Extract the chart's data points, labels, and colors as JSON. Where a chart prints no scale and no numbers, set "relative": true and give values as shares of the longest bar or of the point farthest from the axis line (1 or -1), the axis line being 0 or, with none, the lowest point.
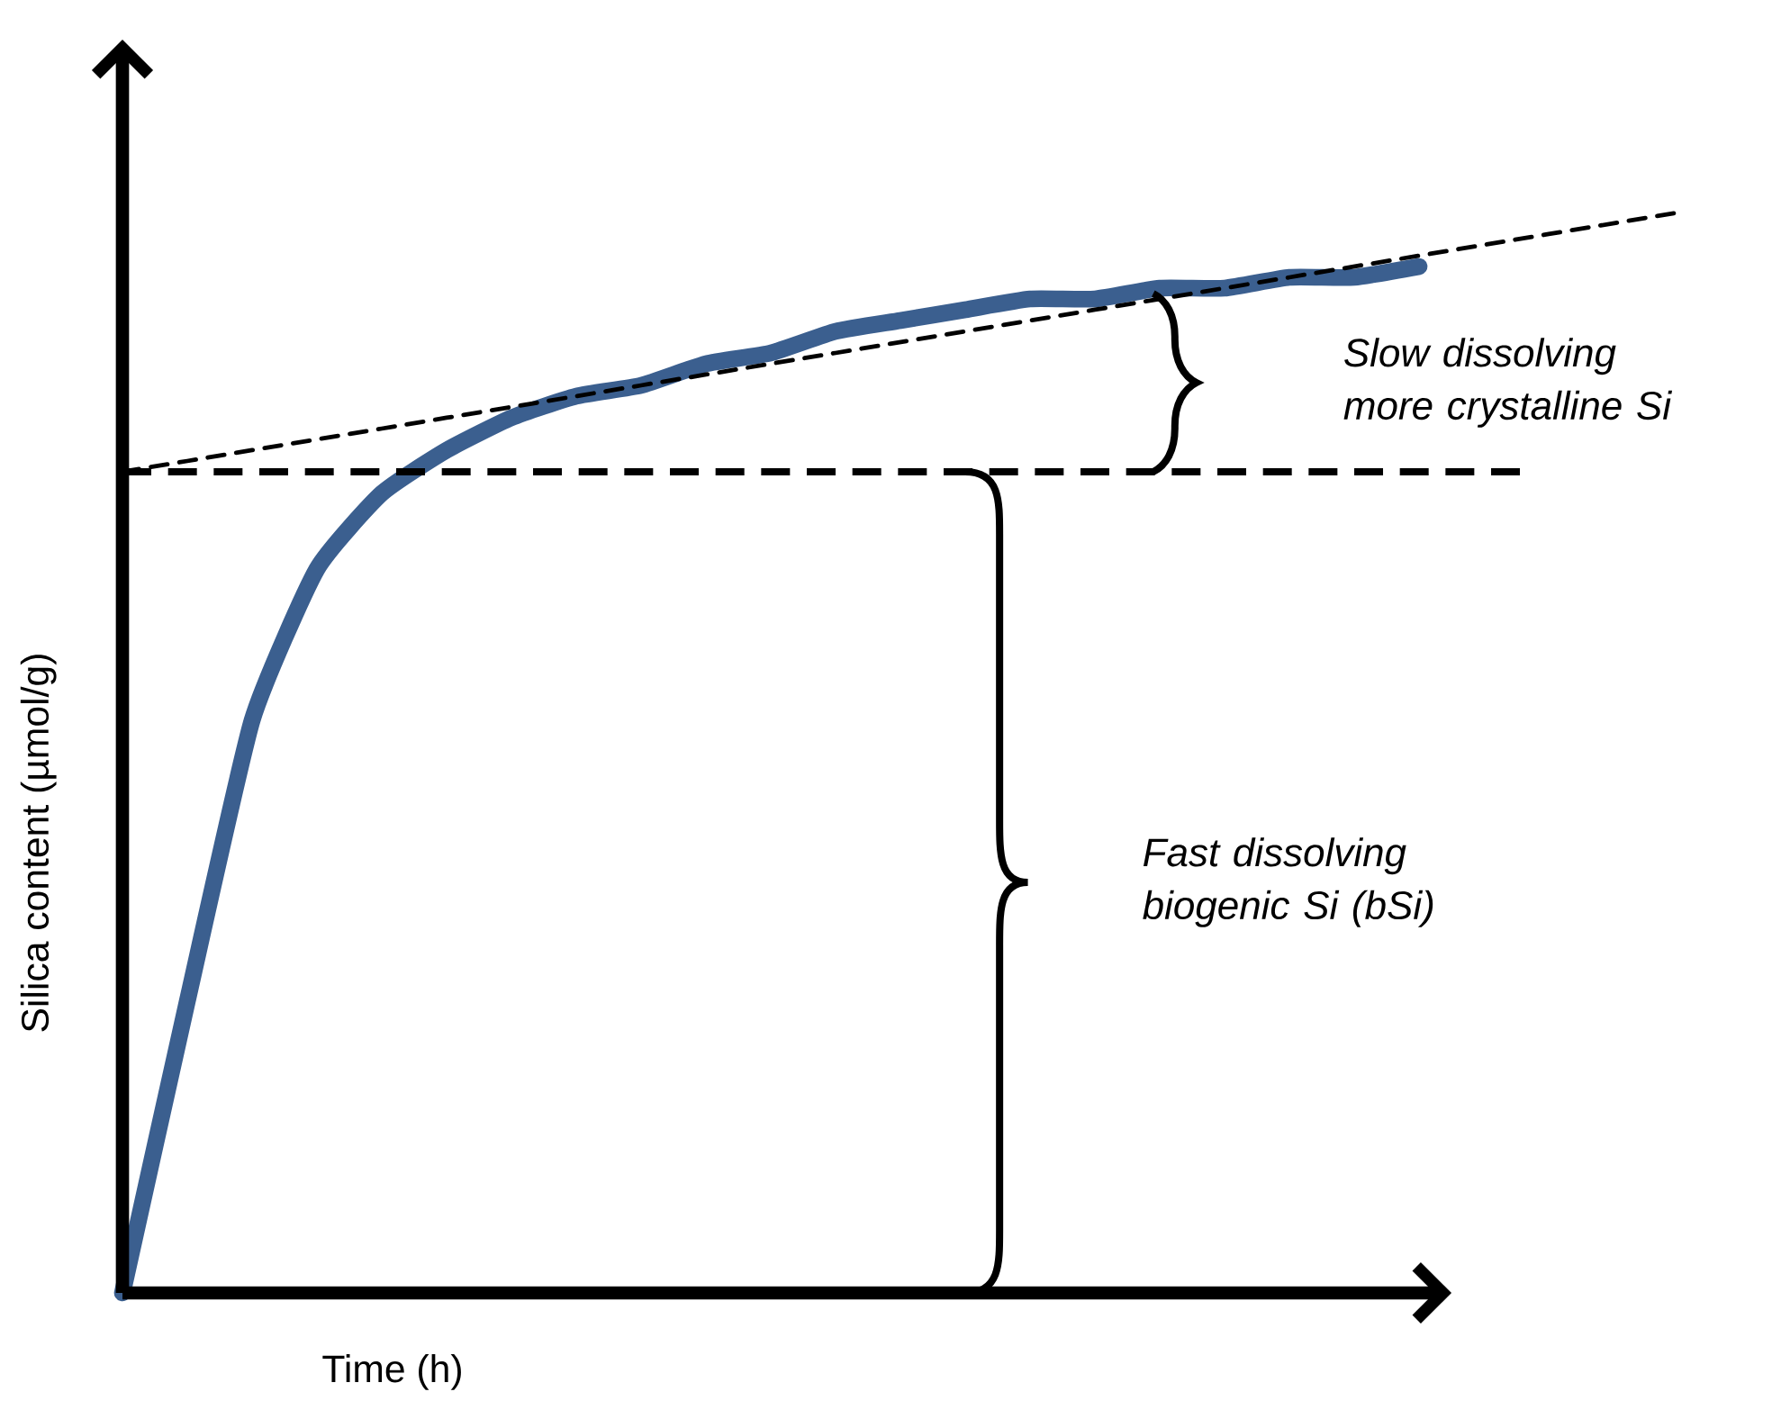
{
  "chart_data": {
    "type": "line",
    "xlabel": "Time (h)",
    "ylabel": "Silica content (µmol/g)",
    "categories": [
      null,
      null,
      null,
      null,
      null,
      null,
      null,
      null,
      null,
      null,
      null,
      null,
      null,
      null,
      null,
      null,
      null,
      null,
      null,
      null,
      null,
      null,
      null,
      null,
      null
    ],
    "relative": true,
    "series": [
      {
        "color": "#3b5f8f",
        "line_style": "solid",
        "values": [
          0,
          0.27,
          0.53,
          0.67,
          0.74,
          0.78,
          0.81,
          0.83,
          0.84,
          0.86,
          0.87,
          0.89,
          0.9,
          0.91,
          0.92,
          0.92,
          0.93,
          0.93,
          0.94,
          0.94,
          0.95,
          null,
          null,
          null,
          null
        ]
      },
      {
        "color": "#000000",
        "line_style": "dashed",
        "values": [
          0.76,
          0.77,
          0.78,
          0.79,
          0.8,
          0.81,
          0.82,
          0.83,
          0.84,
          0.85,
          0.86,
          0.87,
          0.88,
          0.89,
          0.9,
          0.91,
          0.92,
          0.93,
          0.94,
          0.95,
          0.96,
          0.97,
          0.98,
          0.99,
          1.0
        ]
      }
    ],
    "ref_lines": [
      {
        "axis": "y",
        "value": 0.76,
        "color": "#000000",
        "line_style": "dashed"
      }
    ],
    "annotations": [
      "Slow dissolving more crystalline Si",
      "Fast dissolving biogenic Si (bSi)"
    ],
    "marker": "none"
  }
}
